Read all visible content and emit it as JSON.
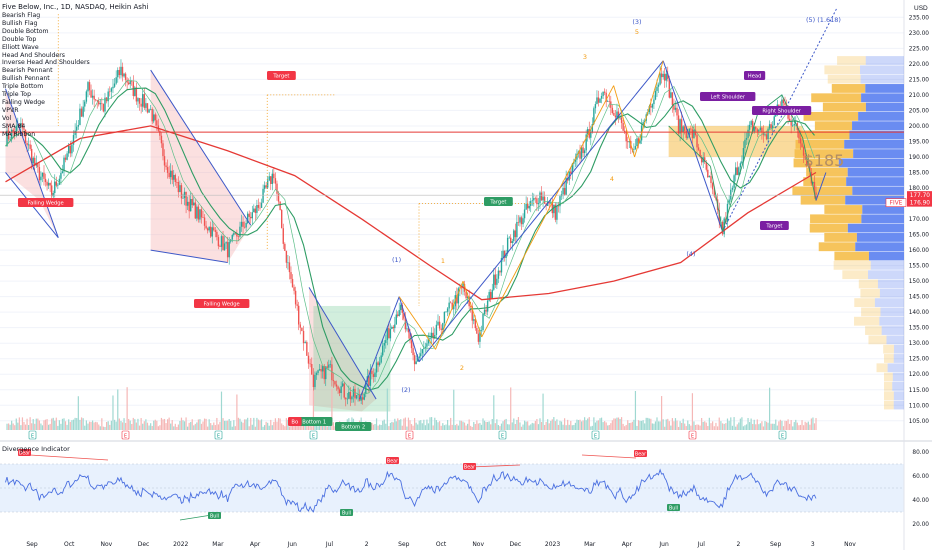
{
  "header": {
    "title": "Five Below, Inc., 1D, NASDAQ, Heikin Ashi",
    "currency": "USD"
  },
  "indicators": [
    "Bearish Flag",
    "Bullish Flag",
    "Double Bottom",
    "Double Top",
    "Elliott Wave",
    "Head And Shoulders",
    "Inverse Head And Shoulders",
    "Bearish Pennant",
    "Bullish Pennant",
    "Triple Bottom",
    "Triple Top",
    "Falling Wedge",
    "VPVR",
    "Vol",
    "SMA 84",
    "MA Ribbon"
  ],
  "oscillator": {
    "title": "Divergence Indicator"
  },
  "colors": {
    "sma_red": "#e53935",
    "ribbon_green": "#2e9c64",
    "up_candle": "#26a69a",
    "down_candle": "#ef5350",
    "pattern_blue": "#3d58c8",
    "wave_orange": "#f39c12",
    "vp_blue": "#5a7ff0",
    "vp_orange": "#f5be4a",
    "osc_line": "#4a6fe0"
  },
  "chart_data": [
    {
      "type": "candlestick",
      "symbol": "FIVE",
      "ylim": [
        103,
        238
      ],
      "y_ticks": [
        105,
        110,
        115,
        120,
        125,
        130,
        135,
        140,
        145,
        150,
        155,
        160,
        165,
        170,
        175,
        180,
        185,
        190,
        195,
        200,
        205,
        210,
        215,
        220,
        225,
        230,
        235
      ],
      "x_tick_labels": [
        "Sep",
        "Oct",
        "Nov",
        "Dec",
        "2022",
        "Mar",
        "Apr",
        "Jun",
        "Jul",
        "2",
        "Sep",
        "Oct",
        "Nov",
        "Dec",
        "2023",
        "Mar",
        "Apr",
        "Jun",
        "Jul",
        "2",
        "Sep",
        "3",
        "Nov"
      ],
      "close_series": [
        {
          "date": "2021-08-25",
          "close": 196
        },
        {
          "date": "2021-09-08",
          "close": 200
        },
        {
          "date": "2021-09-22",
          "close": 186
        },
        {
          "date": "2021-10-06",
          "close": 178
        },
        {
          "date": "2021-10-20",
          "close": 190
        },
        {
          "date": "2021-11-08",
          "close": 212
        },
        {
          "date": "2021-11-22",
          "close": 206
        },
        {
          "date": "2021-12-08",
          "close": 218
        },
        {
          "date": "2021-12-22",
          "close": 210
        },
        {
          "date": "2022-01-04",
          "close": 205
        },
        {
          "date": "2022-01-18",
          "close": 188
        },
        {
          "date": "2022-02-01",
          "close": 178
        },
        {
          "date": "2022-02-15",
          "close": 172
        },
        {
          "date": "2022-03-01",
          "close": 166
        },
        {
          "date": "2022-03-15",
          "close": 160
        },
        {
          "date": "2022-03-29",
          "close": 168
        },
        {
          "date": "2022-04-12",
          "close": 174
        },
        {
          "date": "2022-04-26",
          "close": 185
        },
        {
          "date": "2022-05-06",
          "close": 160
        },
        {
          "date": "2022-05-20",
          "close": 136
        },
        {
          "date": "2022-06-01",
          "close": 118
        },
        {
          "date": "2022-06-15",
          "close": 122
        },
        {
          "date": "2022-06-29",
          "close": 114
        },
        {
          "date": "2022-07-13",
          "close": 112
        },
        {
          "date": "2022-07-27",
          "close": 122
        },
        {
          "date": "2022-08-10",
          "close": 135
        },
        {
          "date": "2022-08-18",
          "close": 142
        },
        {
          "date": "2022-09-01",
          "close": 124
        },
        {
          "date": "2022-09-15",
          "close": 130
        },
        {
          "date": "2022-10-01",
          "close": 140
        },
        {
          "date": "2022-10-15",
          "close": 148
        },
        {
          "date": "2022-10-29",
          "close": 132
        },
        {
          "date": "2022-11-12",
          "close": 150
        },
        {
          "date": "2022-11-26",
          "close": 163
        },
        {
          "date": "2022-12-10",
          "close": 172
        },
        {
          "date": "2022-12-24",
          "close": 178
        },
        {
          "date": "2023-01-07",
          "close": 172
        },
        {
          "date": "2023-01-21",
          "close": 185
        },
        {
          "date": "2023-02-04",
          "close": 195
        },
        {
          "date": "2023-02-18",
          "close": 212
        },
        {
          "date": "2023-03-04",
          "close": 204
        },
        {
          "date": "2023-03-18",
          "close": 190
        },
        {
          "date": "2023-04-01",
          "close": 205
        },
        {
          "date": "2023-04-15",
          "close": 219
        },
        {
          "date": "2023-04-29",
          "close": 200
        },
        {
          "date": "2023-05-13",
          "close": 197
        },
        {
          "date": "2023-05-27",
          "close": 182
        },
        {
          "date": "2023-06-08",
          "close": 166
        },
        {
          "date": "2023-06-20",
          "close": 185
        },
        {
          "date": "2023-07-04",
          "close": 200
        },
        {
          "date": "2023-07-18",
          "close": 197
        },
        {
          "date": "2023-08-01",
          "close": 208
        },
        {
          "date": "2023-08-15",
          "close": 198
        },
        {
          "date": "2023-08-25",
          "close": 188
        },
        {
          "date": "2023-09-01",
          "close": 176.8
        }
      ],
      "sma_84": [
        {
          "date": "2021-08-25",
          "value": 182
        },
        {
          "date": "2021-11-01",
          "value": 196
        },
        {
          "date": "2022-01-04",
          "value": 200
        },
        {
          "date": "2022-03-15",
          "value": 192
        },
        {
          "date": "2022-05-15",
          "value": 184
        },
        {
          "date": "2022-07-15",
          "value": 170
        },
        {
          "date": "2022-09-15",
          "value": 155
        },
        {
          "date": "2022-11-01",
          "value": 144
        },
        {
          "date": "2023-01-01",
          "value": 146
        },
        {
          "date": "2023-03-01",
          "value": 150
        },
        {
          "date": "2023-05-01",
          "value": 156
        },
        {
          "date": "2023-07-01",
          "value": 172
        },
        {
          "date": "2023-09-01",
          "value": 185
        }
      ],
      "price_labels": [
        {
          "text": "177.70",
          "value": 177.7
        },
        {
          "text": "FIVE",
          "value": 176.9
        },
        {
          "text": "176.90",
          "value": 176.9
        }
      ],
      "annotations": {
        "falling_wedge": "Falling Wedge",
        "target": "Target",
        "bottom_1": "Bottom 1",
        "bottom_2": "Bottom 2",
        "bottom_stub": "Bo",
        "left_shoulder": "Left Shoulder",
        "head": "Head",
        "right_shoulder": "Right Shoulder",
        "big_price": "$185",
        "wave_1": "(1)",
        "wave_2": "(2)",
        "wave_3": "(3)",
        "wave_4": "(4)",
        "wave_5": "(5) (1.618)",
        "sub_1": "1",
        "sub_2": "2",
        "sub_3": "3",
        "sub_4": "4",
        "sub_5": "5",
        "earnings": "E"
      }
    },
    {
      "type": "line",
      "name": "Divergence Indicator",
      "ylim": [
        15,
        85
      ],
      "y_ticks": [
        20,
        40,
        60,
        80
      ],
      "band": [
        30,
        70
      ],
      "labels": {
        "bull": "Bull",
        "bear": "Bear"
      }
    }
  ]
}
